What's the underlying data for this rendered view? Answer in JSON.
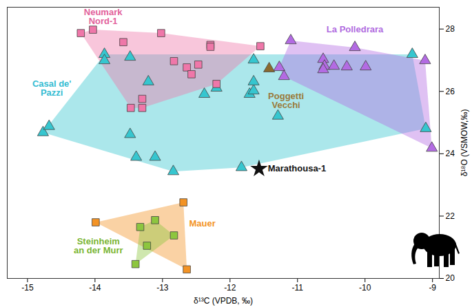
{
  "chart_data": {
    "type": "scatter",
    "x_label": "δ¹³C (VPDB, ‰)",
    "y_label": "δ¹⁸O (VSMOW,‰)",
    "xlim": [
      -15.3,
      -8.9
    ],
    "xticks": [
      -15,
      -14,
      -13,
      -12,
      -11,
      -10,
      -9
    ],
    "ylim": [
      20,
      28.7
    ],
    "yticks": [
      20,
      22,
      24,
      26,
      28
    ],
    "grid": false,
    "series": [
      {
        "name": "Casal de' Pazzi",
        "color": "#36c6cf",
        "marker": "triangle",
        "x": [
          -14.77,
          -14.68,
          -13.86,
          -13.86,
          -13.48,
          -13.48,
          -13.39,
          -13.11,
          -13.21,
          -12.84,
          -12.38,
          -12.2,
          -11.71,
          -11.65,
          -11.65,
          -11.65,
          -11.83,
          -11.29,
          -9.1,
          -9.3
        ],
        "y": [
          24.68,
          24.88,
          27.19,
          26.99,
          27.1,
          24.62,
          23.89,
          23.89,
          26.31,
          23.43,
          25.91,
          26.11,
          25.91,
          26.02,
          26.31,
          27.01,
          23.56,
          25.21,
          24.81,
          27.19
        ]
      },
      {
        "name": "Neumark Nord-1",
        "color": "#ef77a9",
        "marker": "square",
        "x": [
          -14.21,
          -14.03,
          -13.58,
          -13.02,
          -12.83,
          -12.64,
          -12.47,
          -12.57,
          -12.29,
          -12.29,
          -12.2,
          -11.55,
          -13.3,
          -13.3,
          -13.47
        ],
        "y": [
          27.87,
          27.98,
          27.58,
          27.87,
          26.97,
          26.77,
          26.86,
          26.55,
          27.49,
          27.43,
          26.24,
          27.45,
          25.76,
          25.47,
          25.47
        ]
      },
      {
        "name": "La Polledrara",
        "color": "#b36be3",
        "marker": "triangle",
        "x": [
          -11.1,
          -11.27,
          -11.2,
          -10.62,
          -10.6,
          -10.62,
          -10.46,
          -10.15,
          -10.27,
          -9.99,
          -9.11,
          -9.01
        ],
        "y": [
          27.63,
          26.77,
          26.48,
          27.03,
          26.81,
          26.7,
          26.81,
          27.41,
          26.79,
          26.79,
          26.99,
          24.18
        ]
      },
      {
        "name": "Poggetti Vecchi",
        "color": "#8b6a2f",
        "marker": "triangle",
        "x": [
          -11.42
        ],
        "y": [
          26.73
        ]
      },
      {
        "name": "Mauer",
        "color": "#f39325",
        "marker": "square",
        "x": [
          -13.99,
          -12.69,
          -12.64
        ],
        "y": [
          21.8,
          22.44,
          20.29
        ]
      },
      {
        "name": "Steinheim an der Murr",
        "color": "#8dc63f",
        "marker": "square",
        "x": [
          -13.33,
          -13.11,
          -12.83,
          -13.23,
          -13.4
        ],
        "y": [
          21.65,
          21.87,
          21.38,
          21.05,
          20.46
        ]
      },
      {
        "name": "Marathousa-1",
        "color": "#111111",
        "marker": "star",
        "x": [
          -11.57
        ],
        "y": [
          23.52
        ]
      }
    ],
    "annotations": [
      {
        "text": "Neumark\nNord-1",
        "x": -13.88,
        "y": 28.4,
        "color": "#e2619b"
      },
      {
        "text": "Casal de'\nPazzi",
        "x": -14.64,
        "y": 26.09,
        "color": "#34bcd2"
      },
      {
        "text": "La Polledrara",
        "x": -10.15,
        "y": 27.98,
        "color": "#b06be0"
      },
      {
        "text": "Poggetti\nVecchi",
        "x": -11.17,
        "y": 25.71,
        "color": "#9a7a3a"
      },
      {
        "text": "Marathousa-1",
        "x": -11.44,
        "y": 23.52,
        "color": "#111111"
      },
      {
        "text": "Mauer",
        "x": -12.41,
        "y": 21.76,
        "color": "#f39325"
      },
      {
        "text": "Steinheim\nan der Murr",
        "x": -13.95,
        "y": 21.05,
        "color": "#7ab534"
      }
    ]
  }
}
